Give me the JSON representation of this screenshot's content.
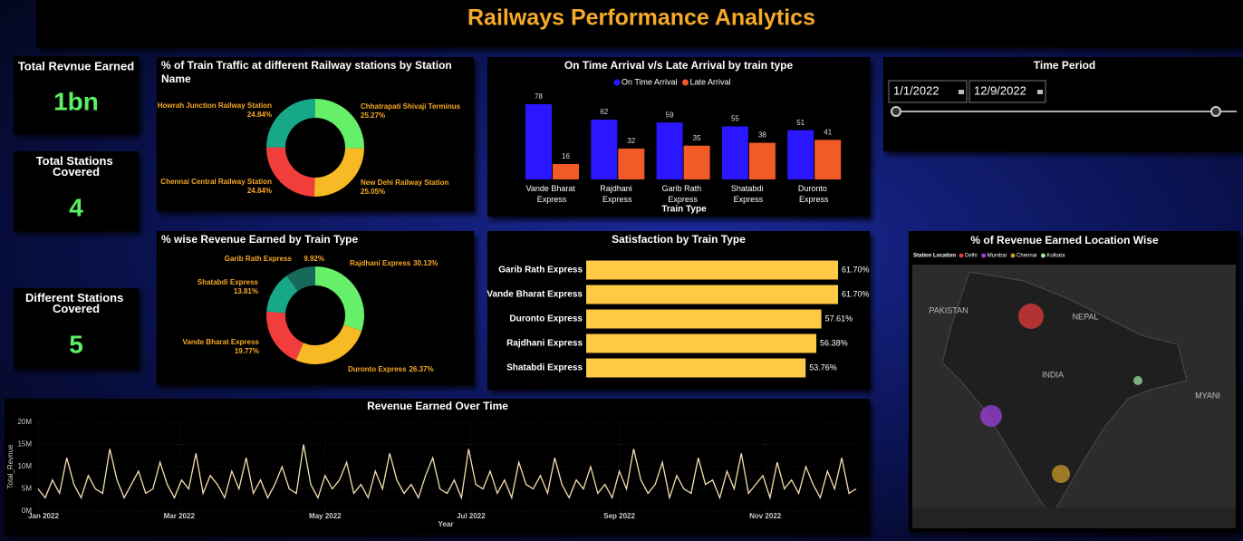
{
  "header": {
    "title": "Railways Performance Analytics"
  },
  "cards": [
    {
      "label": "Total Revnue Earned",
      "value": "1bn"
    },
    {
      "label": "Total Stations Covered",
      "value": 4
    },
    {
      "label": "Different Stations Covered",
      "value": 5
    }
  ],
  "slicer": {
    "title": "Time Period",
    "start": "1/1/2022",
    "end": "12/9/2022"
  },
  "chart_data": [
    {
      "type": "pie",
      "title": "% of Train Traffic at different Railway stations by Station Name",
      "categories": [
        "Chhatrapati Shivaji Terminus",
        "New Dehi Railway Station",
        "Chennai Central Railway Station",
        "Howrah Junction Railway Station"
      ],
      "values": [
        25.27,
        25.05,
        24.84,
        24.84
      ],
      "value_labels": [
        "25.27%",
        "25.05%",
        "24.84%",
        "24.84%"
      ],
      "colors": [
        "#66f06a",
        "#f7b924",
        "#f23d3d",
        "#17a88a"
      ]
    },
    {
      "type": "pie",
      "title": "% wise Revenue Earned by Train Type",
      "categories": [
        "Rajdhani Express",
        "Duronto Express",
        "Vande Bharat Express",
        "Shatabdi Express",
        "Garib Rath Express"
      ],
      "values": [
        30.13,
        26.37,
        19.77,
        13.81,
        9.92
      ],
      "value_labels": [
        "30.13%",
        "26.37%",
        "19.77%",
        "13.81%",
        "9.92%"
      ],
      "colors": [
        "#66f06a",
        "#f7b924",
        "#f23d3d",
        "#17a88a",
        "#17695a"
      ]
    },
    {
      "type": "bar",
      "title": "On Time Arrival v/s Late Arrival by train type",
      "x_label": "Train Type",
      "categories": [
        "Vande Bharat Express",
        "Rajdhani Express",
        "Garib Rath Express",
        "Shatabdi Express",
        "Duronto Express"
      ],
      "series": [
        {
          "name": "On Time Arrival",
          "color": "#2a17ff",
          "values": [
            78,
            62,
            59,
            55,
            51
          ]
        },
        {
          "name": "Late Arrival",
          "color": "#f25a26",
          "values": [
            16,
            32,
            35,
            38,
            41
          ]
        }
      ]
    },
    {
      "type": "hbar",
      "title": "Satisfaction by Train Type",
      "categories": [
        "Garib Rath Express",
        "Vande Bharat Express",
        "Duronto Express",
        "Rajdhani Express",
        "Shatabdi Express"
      ],
      "values": [
        61.7,
        61.7,
        57.61,
        56.38,
        53.76
      ],
      "value_labels": [
        "61.70%",
        "61.70%",
        "57.61%",
        "56.38%",
        "53.76%"
      ],
      "color": "#ffc845"
    },
    {
      "type": "line",
      "title": "Revenue Earned Over Time",
      "x_label": "Year",
      "y_label": "Total_Revnue",
      "color": "#f5dfae",
      "xlim": [
        0,
        342
      ],
      "xticks": [
        {
          "value": 0,
          "label": "Jan 2022"
        },
        {
          "value": 59,
          "label": "Mar 2022"
        },
        {
          "value": 120,
          "label": "May 2022"
        },
        {
          "value": 181,
          "label": "Jul 2022"
        },
        {
          "value": 243,
          "label": "Sep 2022"
        },
        {
          "value": 304,
          "label": "Nov 2022"
        }
      ],
      "ylim": [
        0,
        20
      ],
      "yticks": [
        {
          "value": 0,
          "label": "0M"
        },
        {
          "value": 5,
          "label": "5M"
        },
        {
          "value": 10,
          "label": "10M"
        },
        {
          "value": 15,
          "label": "15M"
        },
        {
          "value": 20,
          "label": "20M"
        }
      ],
      "values": [
        5,
        3,
        7,
        4,
        12,
        6,
        3,
        8,
        5,
        4,
        14,
        7,
        3,
        6,
        9,
        4,
        5,
        11,
        6,
        3,
        7,
        5,
        13,
        4,
        8,
        6,
        3,
        9,
        5,
        12,
        4,
        7,
        3,
        6,
        10,
        5,
        4,
        15,
        6,
        3,
        8,
        5,
        7,
        11,
        4,
        6,
        3,
        9,
        5,
        13,
        7,
        4,
        6,
        3,
        8,
        12,
        5,
        4,
        7,
        3,
        14,
        6,
        5,
        9,
        4,
        7,
        3,
        11,
        6,
        5,
        8,
        4,
        12,
        6,
        3,
        7,
        5,
        10,
        4,
        6,
        3,
        9,
        5,
        14,
        7,
        4,
        6,
        11,
        3,
        8,
        5,
        4,
        12,
        6,
        7,
        3,
        9,
        5,
        13,
        4,
        6,
        8,
        3,
        11,
        5,
        7,
        4,
        10,
        6,
        3,
        9,
        5,
        12,
        4,
        5
      ]
    },
    {
      "type": "map",
      "title": "% of Revenue Earned Location Wise",
      "legend_title": "Station Location",
      "series": [
        {
          "name": "Delhi",
          "color": "#e33b3b"
        },
        {
          "name": "Mumbai",
          "color": "#9d3fd8"
        },
        {
          "name": "Chennai",
          "color": "#c99a2a"
        },
        {
          "name": "Kolkata",
          "color": "#9fe0a5"
        }
      ],
      "place_labels": [
        "PAKISTAN",
        "NEPAL",
        "INDIA",
        "MYANI"
      ]
    }
  ]
}
